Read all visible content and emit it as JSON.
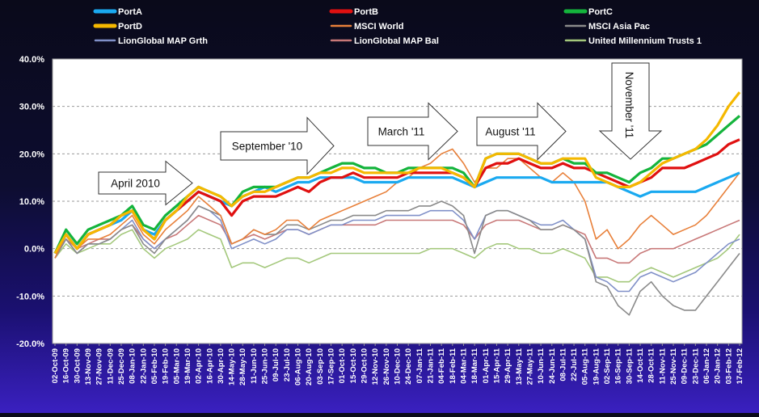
{
  "chart_data": {
    "type": "line",
    "title": "",
    "xlabel": "",
    "ylabel": "",
    "ylim": [
      -20,
      40
    ],
    "yticks": [
      -20,
      -10,
      0,
      10,
      20,
      30,
      40
    ],
    "ytick_labels": [
      "-20.0%",
      "-10.0%",
      "0.0%",
      "10.0%",
      "20.0%",
      "30.0%",
      "40.0%"
    ],
    "gridlines": "horizontal dashed",
    "legend_position": "top",
    "categories": [
      "02-Oct-09",
      "16-Oct-09",
      "30-Oct-09",
      "13-Nov-09",
      "27-Nov-09",
      "11-Dec-09",
      "25-Dec-09",
      "08-Jan-10",
      "22-Jan-10",
      "05-Feb-10",
      "19-Feb-10",
      "05-Mar-10",
      "19-Mar-10",
      "02-Apr-10",
      "16-Apr-10",
      "30-Apr-10",
      "14-May-10",
      "28-May-10",
      "11-Jun-10",
      "25-Jun-10",
      "09-Jul-10",
      "23-Jul-10",
      "06-Aug-10",
      "20-Aug-10",
      "03-Sep-10",
      "17-Sep-10",
      "01-Oct-10",
      "15-Oct-10",
      "29-Oct-10",
      "12-Nov-10",
      "26-Nov-10",
      "10-Dec-10",
      "24-Dec-10",
      "07-Jan-11",
      "21-Jan-11",
      "04-Feb-11",
      "18-Feb-11",
      "04-Mar-11",
      "18-Mar-11",
      "01-Apr-11",
      "15-Apr-11",
      "29-Apr-11",
      "13-May-11",
      "27-May-11",
      "10-Jun-11",
      "24-Jun-11",
      "08-Jul-11",
      "22-Jul-11",
      "05-Aug-11",
      "19-Aug-11",
      "02-Sep-11",
      "16-Sep-11",
      "30-Sep-11",
      "14-Oct-11",
      "28-Oct-11",
      "11-Nov-11",
      "25-Nov-11",
      "09-Dec-11",
      "23-Dec-11",
      "06-Jan-12",
      "20-Jan-12",
      "03-Feb-12",
      "17-Feb-12"
    ],
    "series": [
      {
        "name": "PortA",
        "color": "#1aa9f0",
        "values": [
          -1,
          3,
          0,
          3,
          4,
          5,
          6,
          8,
          4,
          3,
          6,
          8,
          10,
          12,
          11,
          10,
          9,
          11,
          12,
          13,
          12,
          13,
          14,
          14,
          15,
          15,
          15,
          15,
          14,
          14,
          14,
          14,
          15,
          15,
          15,
          15,
          15,
          14,
          13,
          14,
          15,
          15,
          15,
          15,
          15,
          14,
          14,
          14,
          14,
          14,
          14,
          13,
          12,
          11,
          12,
          12,
          12,
          12,
          12,
          13,
          14,
          15,
          16
        ]
      },
      {
        "name": "PortB",
        "color": "#e01010",
        "values": [
          -1,
          3,
          0,
          3,
          4,
          5,
          7,
          8,
          4,
          2,
          6,
          8,
          10,
          12,
          11,
          10,
          7,
          10,
          11,
          11,
          11,
          12,
          13,
          12,
          14,
          15,
          15,
          16,
          15,
          15,
          15,
          15,
          16,
          16,
          16,
          16,
          16,
          15,
          13,
          17,
          18,
          18,
          19,
          18,
          17,
          17,
          18,
          17,
          17,
          16,
          15,
          14,
          13,
          14,
          15,
          17,
          17,
          17,
          18,
          19,
          20,
          22,
          23
        ]
      },
      {
        "name": "PortC",
        "color": "#14b43c",
        "values": [
          -1,
          4,
          1,
          4,
          5,
          6,
          7,
          9,
          5,
          4,
          7,
          9,
          11,
          13,
          12,
          11,
          9,
          12,
          13,
          13,
          13,
          14,
          15,
          15,
          16,
          17,
          18,
          18,
          17,
          17,
          16,
          16,
          17,
          17,
          17,
          17,
          17,
          16,
          13,
          19,
          20,
          20,
          20,
          19,
          18,
          18,
          19,
          18,
          18,
          16,
          16,
          15,
          14,
          16,
          17,
          19,
          19,
          20,
          21,
          22,
          24,
          26,
          28
        ]
      },
      {
        "name": "PortD",
        "color": "#f5b800",
        "values": [
          -1,
          3,
          0,
          3,
          4,
          5,
          7,
          8,
          4,
          2,
          6,
          8,
          11,
          13,
          12,
          11,
          9,
          11,
          12,
          12,
          13,
          14,
          15,
          15,
          16,
          16,
          17,
          17,
          16,
          16,
          16,
          16,
          16,
          17,
          17,
          17,
          16,
          15,
          13,
          19,
          20,
          20,
          20,
          19,
          18,
          18,
          19,
          19,
          19,
          15,
          14,
          13,
          13,
          14,
          16,
          18,
          19,
          20,
          21,
          23,
          26,
          30,
          33
        ]
      },
      {
        "name": "MSCI World",
        "color": "#e8803a",
        "values": [
          -2,
          3,
          0,
          2,
          2,
          3,
          5,
          7,
          3,
          1,
          4,
          6,
          8,
          11,
          9,
          7,
          1,
          2,
          4,
          3,
          4,
          6,
          6,
          4,
          6,
          7,
          8,
          9,
          10,
          11,
          12,
          14,
          15,
          17,
          18,
          20,
          21,
          18,
          14,
          17,
          17,
          19,
          19,
          17,
          15,
          14,
          16,
          14,
          10,
          2,
          4,
          0,
          2,
          5,
          7,
          5,
          3,
          4,
          5,
          7,
          10,
          13,
          16
        ]
      },
      {
        "name": "MSCI Asia Pac",
        "color": "#8a8a8a",
        "values": [
          -2,
          2,
          -1,
          1,
          1,
          2,
          4,
          5,
          1,
          -1,
          2,
          4,
          6,
          9,
          8,
          7,
          1,
          2,
          4,
          3,
          3,
          5,
          5,
          4,
          5,
          6,
          6,
          7,
          7,
          7,
          8,
          8,
          8,
          9,
          9,
          10,
          9,
          7,
          -1,
          7,
          8,
          8,
          7,
          6,
          4,
          4,
          5,
          4,
          2,
          -7,
          -8,
          -12,
          -14,
          -9,
          -7,
          -10,
          -12,
          -13,
          -13,
          -10,
          -7,
          -4,
          -1
        ]
      },
      {
        "name": "LionGlobal MAP Grth",
        "color": "#8090c8",
        "values": [
          -2,
          2,
          -1,
          1,
          1,
          2,
          4,
          6,
          2,
          0,
          2,
          4,
          6,
          9,
          8,
          6,
          0,
          1,
          2,
          1,
          2,
          4,
          4,
          3,
          4,
          5,
          5,
          6,
          6,
          6,
          7,
          7,
          7,
          7,
          8,
          8,
          8,
          6,
          2,
          7,
          8,
          8,
          7,
          6,
          5,
          5,
          6,
          4,
          2,
          -6,
          -7,
          -9,
          -9,
          -6,
          -5,
          -6,
          -7,
          -6,
          -5,
          -3,
          -1,
          1,
          2
        ]
      },
      {
        "name": "LionGlobal MAP Bal",
        "color": "#c87878",
        "values": [
          -1,
          2,
          0,
          1,
          2,
          2,
          4,
          5,
          2,
          0,
          2,
          3,
          5,
          7,
          6,
          5,
          1,
          2,
          3,
          2,
          3,
          4,
          4,
          3,
          4,
          5,
          5,
          5,
          5,
          5,
          6,
          6,
          6,
          6,
          6,
          6,
          6,
          5,
          2,
          5,
          6,
          6,
          6,
          5,
          4,
          4,
          5,
          4,
          3,
          -2,
          -2,
          -3,
          -3,
          -1,
          0,
          0,
          0,
          1,
          2,
          3,
          4,
          5,
          6
        ]
      },
      {
        "name": "United Millennium Trusts 1",
        "color": "#a4c87c",
        "values": [
          -2,
          1,
          -1,
          0,
          1,
          1,
          3,
          4,
          0,
          -2,
          0,
          1,
          2,
          4,
          3,
          2,
          -4,
          -3,
          -3,
          -4,
          -3,
          -2,
          -2,
          -3,
          -2,
          -1,
          -1,
          -1,
          -1,
          -1,
          -1,
          -1,
          -1,
          -1,
          0,
          0,
          0,
          -1,
          -2,
          0,
          1,
          1,
          0,
          0,
          -1,
          -1,
          0,
          -1,
          -2,
          -6,
          -6,
          -7,
          -7,
          -5,
          -4,
          -5,
          -6,
          -5,
          -4,
          -3,
          -2,
          0,
          3
        ]
      }
    ],
    "annotations": [
      {
        "text": "April 2010",
        "kind": "arrow-right"
      },
      {
        "text": "September '10",
        "kind": "arrow-right"
      },
      {
        "text": "March '11",
        "kind": "arrow-right"
      },
      {
        "text": "August '11",
        "kind": "arrow-right"
      },
      {
        "text": "November '11",
        "kind": "arrow-down"
      }
    ]
  }
}
